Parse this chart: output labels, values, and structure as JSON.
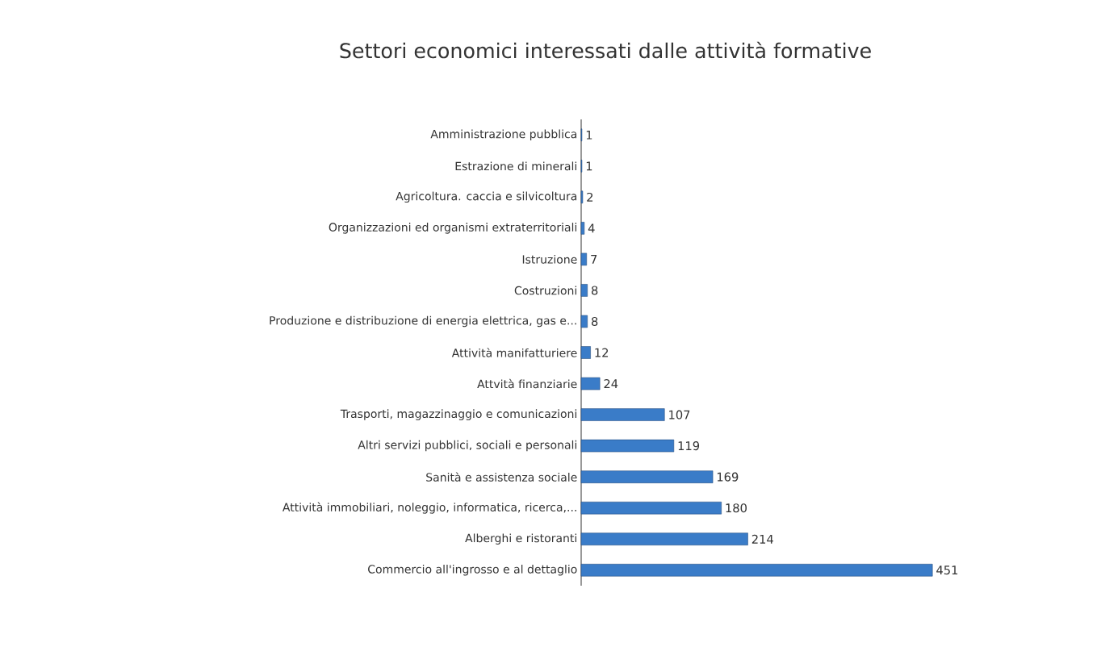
{
  "chart_data": {
    "type": "bar",
    "orientation": "horizontal",
    "title": "Settori economici interessati dalle attività formative",
    "categories": [
      "Amministrazione pubblica",
      "Estrazione di minerali",
      "Agricoltura. caccia e silvicoltura",
      "Organizzazioni ed organismi extraterritoriali",
      "Istruzione",
      "Costruzioni",
      "Produzione e distribuzione di energia elettrica, gas e...",
      "Attività manifatturiere",
      "Attvità finanziarie",
      "Trasporti, magazzinaggio e comunicazioni",
      "Altri servizi pubblici, sociali e personali",
      "Sanità e assistenza sociale",
      "Attività immobiliari, noleggio, informatica, ricerca,...",
      "Alberghi e ristoranti",
      "Commercio all'ingrosso e al dettaglio"
    ],
    "values": [
      1,
      1,
      2,
      4,
      7,
      8,
      8,
      12,
      24,
      107,
      119,
      169,
      180,
      214,
      451
    ],
    "color": "#3a7cc8",
    "data_labels": true
  }
}
